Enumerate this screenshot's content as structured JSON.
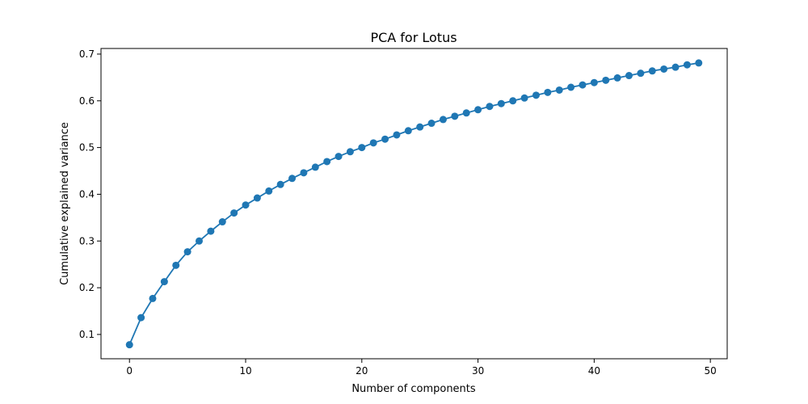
{
  "chart_data": {
    "type": "line",
    "title": "PCA for Lotus",
    "xlabel": "Number of components",
    "ylabel": "Cumulative explained variance",
    "xlim": [
      -2.45,
      51.45
    ],
    "ylim": [
      0.048,
      0.712
    ],
    "xticks": [
      "0",
      "10",
      "20",
      "30",
      "40",
      "50"
    ],
    "yticks": [
      "0.1",
      "0.2",
      "0.3",
      "0.4",
      "0.5",
      "0.6",
      "0.7"
    ],
    "grid": false,
    "marker": "circle",
    "color": "#1f77b4",
    "series": [
      {
        "x": [
          0,
          1,
          2,
          3,
          4,
          5,
          6,
          7,
          8,
          9,
          10,
          11,
          12,
          13,
          14,
          15,
          16,
          17,
          18,
          19,
          20,
          21,
          22,
          23,
          24,
          25,
          26,
          27,
          28,
          29,
          30,
          31,
          32,
          33,
          34,
          35,
          36,
          37,
          38,
          39,
          40,
          41,
          42,
          43,
          44,
          45,
          46,
          47,
          48,
          49
        ],
        "values": [
          0.078,
          0.136,
          0.177,
          0.213,
          0.248,
          0.277,
          0.3,
          0.321,
          0.341,
          0.36,
          0.377,
          0.392,
          0.407,
          0.421,
          0.434,
          0.446,
          0.458,
          0.47,
          0.481,
          0.491,
          0.5,
          0.51,
          0.518,
          0.527,
          0.536,
          0.544,
          0.552,
          0.56,
          0.567,
          0.574,
          0.581,
          0.588,
          0.594,
          0.6,
          0.606,
          0.612,
          0.618,
          0.623,
          0.629,
          0.634,
          0.639,
          0.644,
          0.649,
          0.654,
          0.659,
          0.664,
          0.668,
          0.672,
          0.677,
          0.681
        ]
      }
    ]
  }
}
